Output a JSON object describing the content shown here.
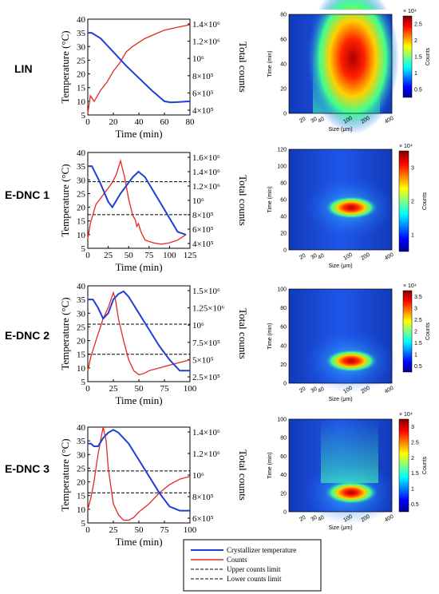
{
  "rows": [
    {
      "label": "LIN"
    },
    {
      "label": "E-DNC 1"
    },
    {
      "label": "E-DNC 2"
    },
    {
      "label": "E-DNC 3"
    }
  ],
  "legend": {
    "temp": "Crystallizer temperature",
    "counts": "Counts",
    "upper": "Upper counts limit",
    "lower": "Lower counts limit"
  },
  "colors": {
    "temp": "#1f3fd4",
    "counts": "#e8261e",
    "limit": "#000000"
  },
  "chart_data": [
    {
      "type": "line",
      "xlabel": "Time (min)",
      "ylabel": "Temperature (°C)",
      "y2label": "Total counts",
      "xlim": [
        0,
        80
      ],
      "ylim": [
        5,
        40
      ],
      "xticks": [
        "0",
        "20",
        "40",
        "60",
        "80"
      ],
      "yticks": [
        "5",
        "10",
        "15",
        "20",
        "25",
        "30",
        "35",
        "40"
      ],
      "y2ticks": [
        "1.4×10⁶",
        "1.2×10⁶",
        "10⁶",
        "8×10⁵",
        "6×10⁵",
        "4×10⁵"
      ],
      "temp": {
        "x": [
          0,
          3,
          10,
          20,
          30,
          40,
          50,
          60,
          65,
          70,
          80
        ],
        "y": [
          35,
          35,
          33,
          28,
          23,
          18.5,
          14,
          10,
          9.6,
          9.7,
          10
        ]
      },
      "counts": {
        "x": [
          0,
          2,
          5,
          10,
          15,
          20,
          25,
          30,
          35,
          40,
          45,
          50,
          55,
          60,
          65,
          70,
          75,
          80
        ],
        "y": [
          5.5,
          12,
          10,
          14,
          17,
          21,
          24,
          28,
          30,
          31.5,
          33,
          34,
          35,
          36,
          36.5,
          37,
          37.5,
          38
        ]
      },
      "limits": []
    },
    {
      "type": "line",
      "xlabel": "Time (min)",
      "ylabel": "Temperature (°C)",
      "y2label": "Total counts",
      "xlim": [
        0,
        125
      ],
      "ylim": [
        5,
        40
      ],
      "xticks": [
        "0",
        "25",
        "50",
        "75",
        "100",
        "125"
      ],
      "yticks": [
        "5",
        "10",
        "15",
        "20",
        "25",
        "30",
        "35",
        "40"
      ],
      "y2ticks": [
        "1.6×10⁶",
        "1.4×10⁶",
        "1.2×10⁶",
        "10⁶",
        "8×10⁵",
        "6×10⁵",
        "4×10⁵"
      ],
      "temp": {
        "x": [
          0,
          5,
          15,
          25,
          30,
          40,
          55,
          62,
          70,
          80,
          90,
          100,
          110,
          120
        ],
        "y": [
          35,
          35,
          29,
          22,
          20,
          25,
          31,
          33,
          31,
          26,
          21,
          16,
          11,
          10
        ]
      },
      "counts": {
        "x": [
          0,
          3,
          10,
          20,
          30,
          35,
          40,
          45,
          50,
          55,
          58,
          60,
          62,
          65,
          70,
          80,
          90,
          100,
          110,
          120
        ],
        "y": [
          8.5,
          14,
          21,
          25,
          29,
          32,
          37,
          31,
          23,
          17,
          15.5,
          13,
          14,
          11,
          8,
          7,
          6.5,
          7,
          8,
          10
        ]
      },
      "limits": [
        29.3,
        17.3
      ]
    },
    {
      "type": "line",
      "xlabel": "Time (min)",
      "ylabel": "Temperature (°C)",
      "y2label": "Total counts",
      "xlim": [
        0,
        100
      ],
      "ylim": [
        5,
        40
      ],
      "xticks": [
        "0",
        "25",
        "50",
        "75",
        "100"
      ],
      "yticks": [
        "5",
        "10",
        "15",
        "20",
        "25",
        "30",
        "35",
        "40"
      ],
      "y2ticks": [
        "1.5×10⁶",
        "1.25×10⁶",
        "10⁶",
        "7.5×10⁵",
        "5×10⁵",
        "2.5×10⁵"
      ],
      "temp": {
        "x": [
          0,
          5,
          10,
          15,
          20,
          25,
          30,
          35,
          40,
          50,
          60,
          70,
          80,
          90,
          95,
          100
        ],
        "y": [
          35,
          35,
          32,
          28,
          30,
          35,
          37,
          38,
          36,
          30,
          24,
          18,
          13,
          9,
          9,
          9
        ]
      },
      "counts": {
        "x": [
          0,
          3,
          8,
          15,
          20,
          25,
          27,
          30,
          35,
          40,
          45,
          50,
          55,
          60,
          70,
          80,
          90,
          100
        ],
        "y": [
          9,
          14,
          20,
          28,
          32,
          37.5,
          35,
          28,
          20,
          13,
          9,
          7.5,
          8,
          9,
          10,
          11,
          12,
          13
        ]
      },
      "limits": [
        26,
        15
      ]
    },
    {
      "type": "line",
      "xlabel": "Time (min)",
      "ylabel": "Temperature (°C)",
      "y2label": "Total counts",
      "xlim": [
        0,
        100
      ],
      "ylim": [
        5,
        40
      ],
      "xticks": [
        "0",
        "25",
        "50",
        "75",
        "100"
      ],
      "yticks": [
        "5",
        "10",
        "15",
        "20",
        "25",
        "30",
        "35",
        "40"
      ],
      "y2ticks": [
        "1.4×10⁶",
        "1.2×10⁶",
        "10⁶",
        "8×10⁵",
        "6×10⁵"
      ],
      "temp": {
        "x": [
          0,
          3,
          6,
          10,
          15,
          20,
          25,
          30,
          40,
          50,
          60,
          70,
          80,
          90,
          95,
          100
        ],
        "y": [
          34,
          34,
          33,
          33,
          36,
          38,
          39,
          38,
          34,
          28,
          22,
          16,
          11,
          9.5,
          9.5,
          9.5
        ]
      },
      "counts": {
        "x": [
          0,
          3,
          6,
          10,
          13,
          15,
          18,
          20,
          25,
          30,
          35,
          40,
          45,
          50,
          60,
          70,
          80,
          90,
          100
        ],
        "y": [
          10,
          14,
          20,
          30,
          36,
          40,
          35,
          25,
          12,
          8,
          6,
          6,
          7,
          9,
          12,
          16,
          19,
          21,
          22
        ]
      },
      "limits": [
        24,
        16
      ]
    },
    {
      "type": "heatmap",
      "xlabel": "Size (μm)",
      "ylabel": "Time (min)",
      "cbar_label": "Counts",
      "cbar_exp": "× 10⁴",
      "xticks": [
        "20",
        "30",
        "40",
        "100",
        "200",
        "400"
      ],
      "ylim": [
        0,
        80
      ],
      "yticks": [
        "0",
        "20",
        "40",
        "60",
        "80"
      ],
      "cbar_ticks": [
        "0.5",
        "1",
        "1.5",
        "2",
        "2.5"
      ]
    },
    {
      "type": "heatmap",
      "xlabel": "Size (μm)",
      "ylabel": "Time (min)",
      "cbar_label": "Counts",
      "cbar_exp": "× 10⁴",
      "xticks": [
        "20",
        "30",
        "40",
        "100",
        "200",
        "400"
      ],
      "ylim": [
        0,
        120
      ],
      "yticks": [
        "0",
        "20",
        "40",
        "60",
        "80",
        "100",
        "120"
      ],
      "cbar_ticks": [
        "1",
        "2",
        "3"
      ]
    },
    {
      "type": "heatmap",
      "xlabel": "Size (μm)",
      "ylabel": "Time (min)",
      "cbar_label": "Counts",
      "cbar_exp": "× 10⁴",
      "xticks": [
        "20",
        "30",
        "40",
        "100",
        "200",
        "400"
      ],
      "ylim": [
        0,
        100
      ],
      "yticks": [
        "0",
        "20",
        "40",
        "60",
        "80",
        "100"
      ],
      "cbar_ticks": [
        "0.5",
        "1",
        "1.5",
        "2",
        "2.5",
        "3",
        "3.5"
      ]
    },
    {
      "type": "heatmap",
      "xlabel": "Size (μm)",
      "ylabel": "Time (min)",
      "cbar_label": "Counts",
      "cbar_exp": "× 10⁴",
      "xticks": [
        "20",
        "30",
        "40",
        "100",
        "200",
        "400"
      ],
      "ylim": [
        0,
        100
      ],
      "yticks": [
        "0",
        "20",
        "40",
        "60",
        "80",
        "100"
      ],
      "cbar_ticks": [
        "0.5",
        "1",
        "1.5",
        "2",
        "2.5",
        "3"
      ]
    }
  ]
}
